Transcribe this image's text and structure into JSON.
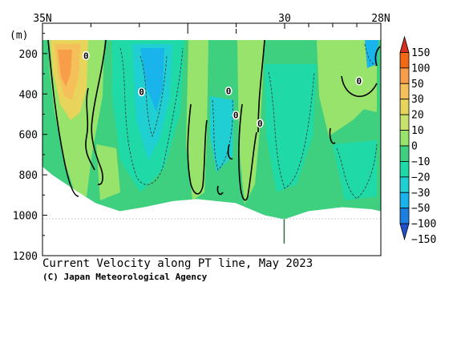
{
  "chart_data": {
    "type": "heatmap",
    "title": "Current Velocity along PT line, May 2023",
    "credit": "(C) Japan Meteorological Agency",
    "ylabel": "(m)",
    "x_ticks": [
      {
        "lat": 35,
        "label": "35N"
      },
      {
        "lat": 30,
        "label": "30"
      },
      {
        "lat": 28,
        "label": "28N"
      }
    ],
    "x_range": [
      35,
      28
    ],
    "y_ticks": [
      {
        "depth": 200,
        "label": "200"
      },
      {
        "depth": 400,
        "label": "400"
      },
      {
        "depth": 600,
        "label": "600"
      },
      {
        "depth": 800,
        "label": "800"
      },
      {
        "depth": 1000,
        "label": "1000"
      },
      {
        "depth": 1200,
        "label": "1200"
      }
    ],
    "y_range": [
      50,
      1200
    ],
    "colorbar": {
      "levels": [
        150,
        100,
        50,
        30,
        20,
        10,
        0,
        -10,
        -20,
        -30,
        -50,
        -100,
        -150
      ],
      "labels": [
        "150",
        "100",
        "50",
        "30",
        "20",
        "10",
        "0",
        "−10",
        "−20",
        "−30",
        "−50",
        "−100",
        "−150"
      ],
      "colors": [
        "#d7301f",
        "#f16913",
        "#f89d4a",
        "#f5c05a",
        "#e8d45a",
        "#c8e06e",
        "#97e36b",
        "#3ed07e",
        "#1fd9a6",
        "#20cfd2",
        "#19b4ec",
        "#1d7fe0",
        "#2050c8"
      ]
    },
    "contour_labels": [
      {
        "lat": 34.1,
        "depth": 210,
        "text": "0"
      },
      {
        "lat": 32.95,
        "depth": 390,
        "text": "0"
      },
      {
        "lat": 31.15,
        "depth": 385,
        "text": "0"
      },
      {
        "lat": 31.0,
        "depth": 505,
        "text": "0"
      },
      {
        "lat": 30.5,
        "depth": 545,
        "text": "0"
      },
      {
        "lat": 28.45,
        "depth": 335,
        "text": "0"
      }
    ],
    "bottom_profile": [
      {
        "lat": 35.0,
        "depth": 760
      },
      {
        "lat": 34.8,
        "depth": 800
      },
      {
        "lat": 34.3,
        "depth": 880
      },
      {
        "lat": 33.9,
        "depth": 940
      },
      {
        "lat": 33.4,
        "depth": 980
      },
      {
        "lat": 32.9,
        "depth": 960
      },
      {
        "lat": 32.3,
        "depth": 930
      },
      {
        "lat": 31.8,
        "depth": 920
      },
      {
        "lat": 31.0,
        "depth": 940
      },
      {
        "lat": 30.4,
        "depth": 1000
      },
      {
        "lat": 30.0,
        "depth": 1020
      },
      {
        "lat": 29.5,
        "depth": 980
      },
      {
        "lat": 28.8,
        "depth": 960
      },
      {
        "lat": 28.2,
        "depth": 970
      },
      {
        "lat": 28.0,
        "depth": 980
      }
    ]
  }
}
